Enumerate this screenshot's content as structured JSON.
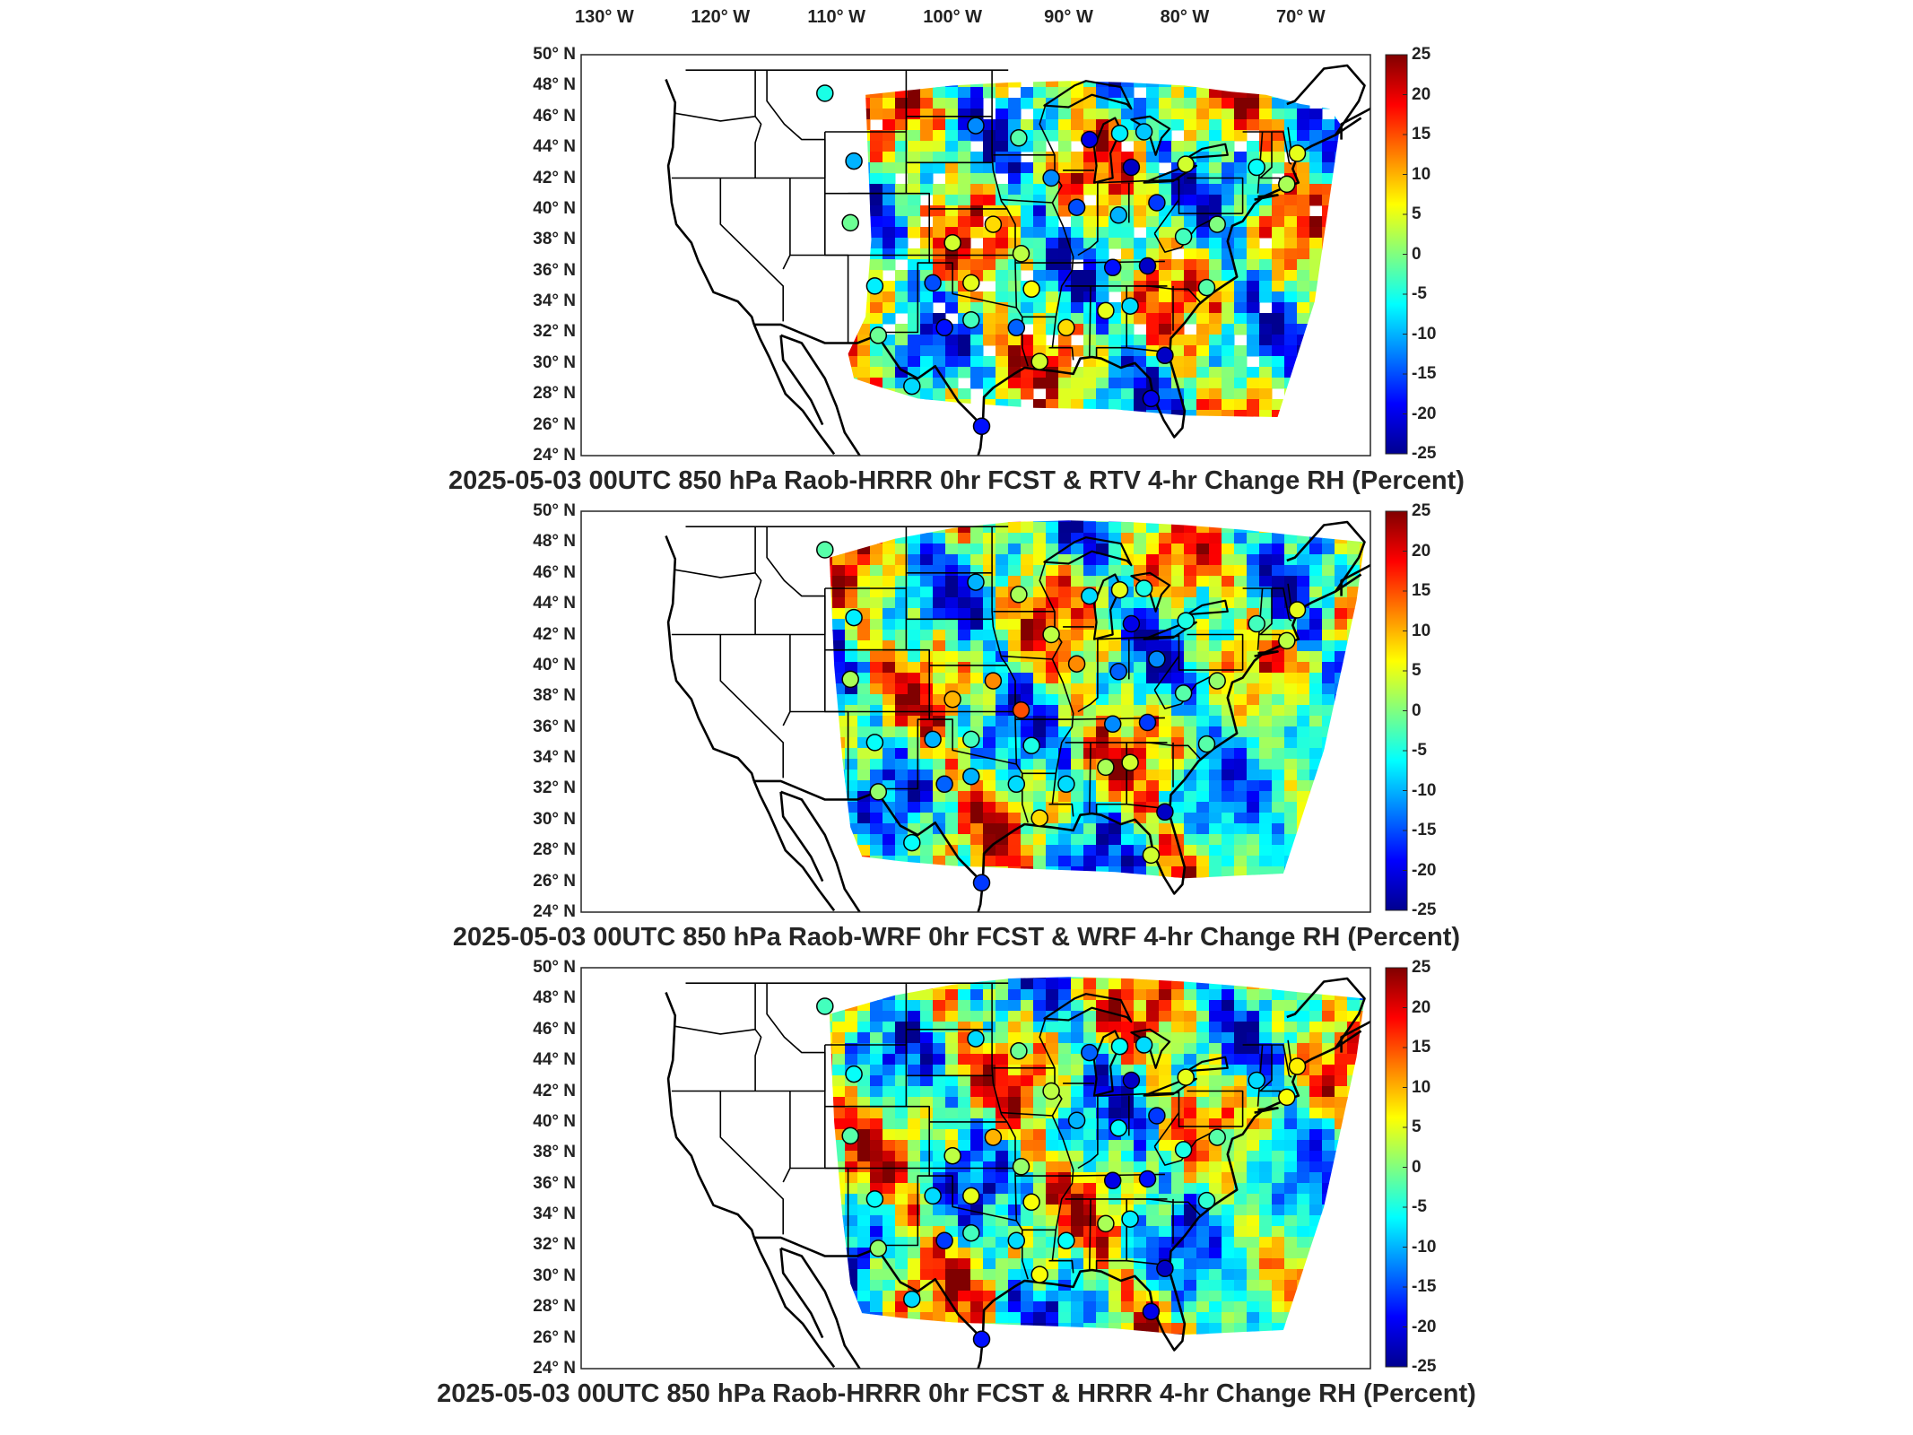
{
  "lon_labels": [
    "130° W",
    "120° W",
    "110° W",
    "100° W",
    "90° W",
    "80° W",
    "70° W"
  ],
  "lat_labels": [
    "50° N",
    "48° N",
    "46° N",
    "44° N",
    "42° N",
    "40° N",
    "38° N",
    "36° N",
    "34° N",
    "32° N",
    "30° N",
    "28° N",
    "26° N",
    "24° N"
  ],
  "colorbar": {
    "ticks": [
      "25",
      "20",
      "15",
      "10",
      "5",
      "0",
      "-5",
      "-10",
      "-15",
      "-20",
      "-25"
    ],
    "range": [
      -25,
      25
    ],
    "colormap": "jet",
    "colors": [
      "#00008f",
      "#0000ff",
      "#0080ff",
      "#00ffff",
      "#80ff80",
      "#ffff00",
      "#ff8000",
      "#ff0000",
      "#800000"
    ]
  },
  "panels": [
    {
      "title": "2025-05-03 00UTC 850 hPa Raob-HRRR 0hr FCST & RTV 4-hr Change RH (Percent)",
      "field_style": "rtv"
    },
    {
      "title": "2025-05-03 00UTC 850 hPa Raob-WRF 0hr FCST & WRF 4-hr Change RH (Percent)",
      "field_style": "wrf"
    },
    {
      "title": "2025-05-03 00UTC 850 hPa Raob-HRRR 0hr FCST & HRRR 4-hr Change RH (Percent)",
      "field_style": "hrrr"
    }
  ],
  "stations": [
    {
      "lon": -111.0,
      "lat": 47.5,
      "values": [
        -5,
        -2,
        -3
      ]
    },
    {
      "lon": -108.5,
      "lat": 43.1,
      "values": [
        -10,
        -7,
        -6
      ]
    },
    {
      "lon": -108.8,
      "lat": 39.1,
      "values": [
        -1,
        2,
        -2
      ]
    },
    {
      "lon": -106.7,
      "lat": 35.0,
      "values": [
        -7,
        -6,
        -6
      ]
    },
    {
      "lon": -106.4,
      "lat": 31.8,
      "values": [
        -1,
        1,
        1
      ]
    },
    {
      "lon": -103.5,
      "lat": 28.5,
      "values": [
        -8,
        -6,
        -8
      ]
    },
    {
      "lon": -100.7,
      "lat": 32.3,
      "values": [
        -18,
        -14,
        -16
      ]
    },
    {
      "lon": -101.7,
      "lat": 35.2,
      "values": [
        -15,
        -10,
        -8
      ]
    },
    {
      "lon": -98.4,
      "lat": 32.8,
      "values": [
        -3,
        -10,
        -3
      ]
    },
    {
      "lon": -97.5,
      "lat": 25.9,
      "values": [
        -18,
        -16,
        -18
      ]
    },
    {
      "lon": -98.4,
      "lat": 35.2,
      "values": [
        5,
        -3,
        5
      ]
    },
    {
      "lon": -100.0,
      "lat": 37.8,
      "values": [
        4,
        10,
        3
      ]
    },
    {
      "lon": -98.0,
      "lat": 45.4,
      "values": [
        -12,
        -10,
        -8
      ]
    },
    {
      "lon": -96.5,
      "lat": 39.0,
      "values": [
        8,
        12,
        10
      ]
    },
    {
      "lon": -94.3,
      "lat": 44.6,
      "values": [
        -2,
        2,
        -1
      ]
    },
    {
      "lon": -94.1,
      "lat": 37.1,
      "values": [
        3,
        15,
        1
      ]
    },
    {
      "lon": -94.5,
      "lat": 32.3,
      "values": [
        -14,
        -8,
        -8
      ]
    },
    {
      "lon": -93.2,
      "lat": 34.8,
      "values": [
        6,
        -5,
        6
      ]
    },
    {
      "lon": -92.5,
      "lat": 30.1,
      "values": [
        4,
        8,
        6
      ]
    },
    {
      "lon": -91.5,
      "lat": 42.0,
      "values": [
        -12,
        3,
        3
      ]
    },
    {
      "lon": -90.2,
      "lat": 32.3,
      "values": [
        8,
        -8,
        -6
      ]
    },
    {
      "lon": -89.3,
      "lat": 40.1,
      "values": [
        -15,
        12,
        -10
      ]
    },
    {
      "lon": -88.2,
      "lat": 44.5,
      "values": [
        -20,
        -8,
        -14
      ]
    },
    {
      "lon": -86.2,
      "lat": 36.2,
      "values": [
        -18,
        -12,
        -20
      ]
    },
    {
      "lon": -86.8,
      "lat": 33.4,
      "values": [
        5,
        2,
        2
      ]
    },
    {
      "lon": -85.7,
      "lat": 39.6,
      "values": [
        -10,
        -14,
        -6
      ]
    },
    {
      "lon": -84.6,
      "lat": 42.7,
      "values": [
        -22,
        -20,
        -22
      ]
    },
    {
      "lon": -85.6,
      "lat": 44.9,
      "values": [
        -7,
        5,
        -6
      ]
    },
    {
      "lon": -83.5,
      "lat": 45.0,
      "values": [
        -9,
        -5,
        -8
      ]
    },
    {
      "lon": -84.7,
      "lat": 33.7,
      "values": [
        -8,
        4,
        -7
      ]
    },
    {
      "lon": -82.9,
      "lat": 27.7,
      "values": [
        -20,
        4,
        -20
      ]
    },
    {
      "lon": -81.7,
      "lat": 30.5,
      "values": [
        -22,
        -22,
        -22
      ]
    },
    {
      "lon": -82.4,
      "lat": 40.4,
      "values": [
        -16,
        -12,
        -16
      ]
    },
    {
      "lon": -83.2,
      "lat": 36.3,
      "values": [
        -22,
        -16,
        -18
      ]
    },
    {
      "lon": -80.1,
      "lat": 38.2,
      "values": [
        -3,
        -2,
        -5
      ]
    },
    {
      "lon": -79.9,
      "lat": 42.9,
      "values": [
        4,
        -5,
        5
      ]
    },
    {
      "lon": -77.2,
      "lat": 39.0,
      "values": [
        0,
        1,
        -2
      ]
    },
    {
      "lon": -78.1,
      "lat": 34.9,
      "values": [
        -2,
        -2,
        -4
      ]
    },
    {
      "lon": -73.8,
      "lat": 42.7,
      "values": [
        -6,
        -3,
        -8
      ]
    },
    {
      "lon": -70.3,
      "lat": 43.6,
      "values": [
        5,
        5,
        7
      ]
    },
    {
      "lon": -71.2,
      "lat": 41.6,
      "values": [
        2,
        3,
        6
      ]
    }
  ]
}
